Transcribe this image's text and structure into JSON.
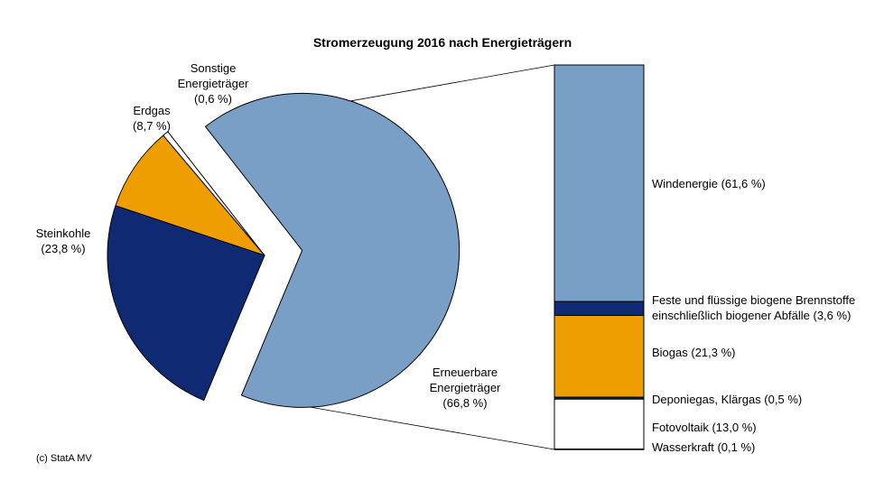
{
  "chart_data": [
    {
      "type": "pie",
      "title": "Stromerzeugung 2016 nach Energieträgern",
      "slices": [
        {
          "label": [
            "Erneuerbare",
            "Energieträger",
            "(66,8 %)"
          ],
          "value": 66.8,
          "color": "#7a9fc7",
          "exploded": true
        },
        {
          "label": [
            "Steinkohle",
            "(23,8 %)"
          ],
          "value": 23.8,
          "color": "#0f2a72",
          "exploded": false
        },
        {
          "label": [
            "Erdgas",
            "(8,7 %)"
          ],
          "value": 8.7,
          "color": "#ee9e00",
          "exploded": false
        },
        {
          "label": [
            "Sonstige",
            "Energieträger",
            "(0,6 %)"
          ],
          "value": 0.6,
          "color": "#ffffff",
          "exploded": false
        }
      ]
    },
    {
      "type": "bar",
      "stacked": true,
      "breakdown_of": "Erneuerbare Energieträger",
      "segments": [
        {
          "label": [
            "Windenergie (61,6 %)"
          ],
          "value": 61.6,
          "color": "#7a9fc7"
        },
        {
          "label": [
            "Feste und flüssige biogene Brennstoffe",
            "einschließlich biogener Abfälle (3,6 %)"
          ],
          "value": 3.6,
          "color": "#0f2a72"
        },
        {
          "label": [
            "Biogas (21,3 %)"
          ],
          "value": 21.3,
          "color": "#ee9e00"
        },
        {
          "label": [
            "Deponiegas, Klärgas (0,5 %)"
          ],
          "value": 0.5,
          "color": "#0f2a72"
        },
        {
          "label": [
            "Fotovoltaik (13,0 %)"
          ],
          "value": 13.0,
          "color": "#ffffff"
        },
        {
          "label": [
            "Wasserkraft (0,1 %)"
          ],
          "value": 0.1,
          "color": "#ffffff"
        }
      ]
    }
  ],
  "source": "(c) StatA MV"
}
